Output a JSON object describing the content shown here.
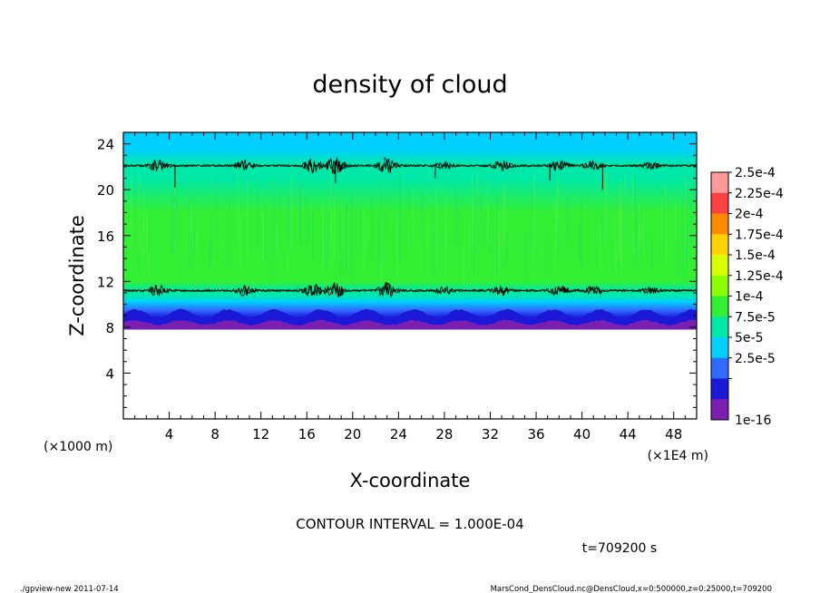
{
  "chart_data": {
    "type": "heatmap",
    "title": "density of cloud",
    "xlabel": "X-coordinate",
    "ylabel": "Z-coordinate",
    "x_unit": "(×1E4 m)",
    "y_unit": "(×1000 m)",
    "xlim": [
      0,
      50
    ],
    "ylim": [
      0,
      25
    ],
    "x_ticks": [
      4,
      8,
      12,
      16,
      20,
      24,
      28,
      32,
      36,
      40,
      44,
      48
    ],
    "y_ticks": [
      4,
      8,
      12,
      16,
      20,
      24
    ],
    "colorbar": {
      "labels": [
        "2.5e-4",
        "2.25e-4",
        "2e-4",
        "1.75e-4",
        "1.5e-4",
        "1.25e-4",
        "1e-4",
        "7.5e-5",
        "5e-5",
        "2.5e-5",
        "1e-16"
      ],
      "colors": [
        "#ff9a9a",
        "#ff4040",
        "#ff8a00",
        "#ffd200",
        "#d8ff00",
        "#8cff00",
        "#33ef33",
        "#00e8a8",
        "#00cfff",
        "#2f6bff",
        "#1c18d8",
        "#7a1fb0"
      ]
    },
    "profile": {
      "z": [
        7.8,
        8.2,
        8.8,
        9.5,
        10.2,
        10.8,
        11.2,
        12.0,
        14.0,
        18.0,
        21.0,
        22.2,
        23.5,
        25.0
      ],
      "color_index": [
        11,
        11,
        10,
        9,
        8,
        7,
        7,
        6,
        6,
        6,
        7,
        7,
        8,
        8
      ]
    },
    "contour_levels": [
      {
        "name": "lower",
        "z_mean": 11.2
      },
      {
        "name": "upper",
        "z_mean": 22.1
      }
    ],
    "contour_interval": "CONTOUR INTERVAL = 1.000E-04",
    "time_label": "t=709200 s"
  },
  "footer": {
    "left": "./gpview-new   2011-07-14",
    "right": "MarsCond_DensCloud.nc@DensCloud,x=0:500000,z=0:25000,t=709200"
  }
}
